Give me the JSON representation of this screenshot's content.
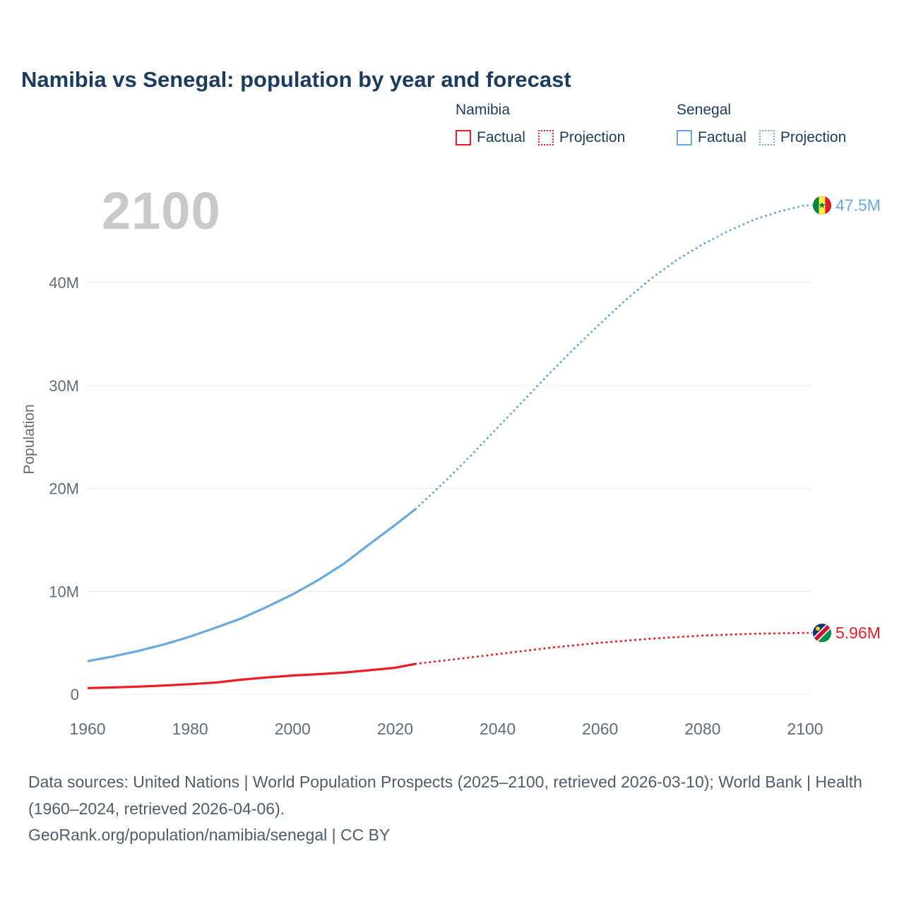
{
  "title": "Namibia vs Senegal: population by year and forecast",
  "watermark": "2100",
  "legend": {
    "groups": [
      {
        "name": "Namibia",
        "color": "#ee1d23",
        "items": [
          {
            "label": "Factual",
            "style": "solid"
          },
          {
            "label": "Projection",
            "style": "dotted"
          }
        ]
      },
      {
        "name": "Senegal",
        "color": "#68a9e2",
        "items": [
          {
            "label": "Factual",
            "style": "solid"
          },
          {
            "label": "Projection",
            "style": "dotted"
          }
        ]
      }
    ]
  },
  "end_labels": [
    {
      "series": "Senegal",
      "value": "47.5M",
      "value_m": 47.5,
      "color": "#68a9e2",
      "flag": "senegal"
    },
    {
      "series": "Namibia",
      "value": "5.96M",
      "value_m": 5.96,
      "color": "#ee1d23",
      "flag": "namibia"
    }
  ],
  "footer": {
    "sources": "Data sources: United Nations | World Population Prospects (2025–2100, retrieved 2026-03-10); World Bank | Health (1960–2024, retrieved 2026-04-06).",
    "attribution": "GeoRank.org/population/namibia/senegal | CC BY"
  },
  "chart_data": {
    "type": "line",
    "title": "Namibia vs Senegal: population by year and forecast",
    "xlabel": "",
    "ylabel": "Population",
    "unit": "millions",
    "xlim": [
      1960,
      2100
    ],
    "ylim": [
      0,
      48
    ],
    "grid": true,
    "legend_position": "top-right",
    "x_ticks": [
      1960,
      1980,
      2000,
      2020,
      2040,
      2060,
      2080,
      2100
    ],
    "y_ticks": [
      {
        "value": 0,
        "label": "0"
      },
      {
        "value": 10,
        "label": "10M"
      },
      {
        "value": 20,
        "label": "20M"
      },
      {
        "value": 30,
        "label": "30M"
      },
      {
        "value": 40,
        "label": "40M"
      }
    ],
    "series": [
      {
        "name": "Senegal Factual",
        "color": "#68a9e2",
        "style": "solid",
        "points": [
          [
            1960,
            3.21
          ],
          [
            1965,
            3.68
          ],
          [
            1970,
            4.22
          ],
          [
            1975,
            4.85
          ],
          [
            1980,
            5.6
          ],
          [
            1985,
            6.46
          ],
          [
            1990,
            7.37
          ],
          [
            1995,
            8.49
          ],
          [
            2000,
            9.7
          ],
          [
            2005,
            11.09
          ],
          [
            2010,
            12.68
          ],
          [
            2015,
            14.58
          ],
          [
            2020,
            16.44
          ],
          [
            2024,
            18.0
          ]
        ]
      },
      {
        "name": "Senegal Projection",
        "color": "#68a9e2",
        "style": "dotted",
        "points": [
          [
            2024,
            18.0
          ],
          [
            2030,
            20.8
          ],
          [
            2035,
            23.3
          ],
          [
            2040,
            25.9
          ],
          [
            2045,
            28.5
          ],
          [
            2050,
            31.1
          ],
          [
            2055,
            33.6
          ],
          [
            2060,
            36.0
          ],
          [
            2065,
            38.3
          ],
          [
            2070,
            40.4
          ],
          [
            2075,
            42.2
          ],
          [
            2080,
            43.7
          ],
          [
            2085,
            45.0
          ],
          [
            2090,
            46.1
          ],
          [
            2095,
            46.9
          ],
          [
            2100,
            47.5
          ]
        ]
      },
      {
        "name": "Namibia Factual",
        "color": "#ee1d23",
        "style": "solid",
        "points": [
          [
            1960,
            0.6
          ],
          [
            1965,
            0.66
          ],
          [
            1970,
            0.74
          ],
          [
            1975,
            0.85
          ],
          [
            1980,
            0.98
          ],
          [
            1985,
            1.13
          ],
          [
            1990,
            1.41
          ],
          [
            1995,
            1.63
          ],
          [
            2000,
            1.82
          ],
          [
            2005,
            1.95
          ],
          [
            2010,
            2.1
          ],
          [
            2015,
            2.33
          ],
          [
            2020,
            2.57
          ],
          [
            2024,
            2.96
          ]
        ]
      },
      {
        "name": "Namibia Projection",
        "color": "#ee1d23",
        "style": "dotted",
        "points": [
          [
            2024,
            2.96
          ],
          [
            2030,
            3.3
          ],
          [
            2040,
            3.9
          ],
          [
            2050,
            4.5
          ],
          [
            2060,
            5.0
          ],
          [
            2070,
            5.4
          ],
          [
            2080,
            5.7
          ],
          [
            2090,
            5.88
          ],
          [
            2100,
            5.96
          ]
        ]
      }
    ]
  }
}
